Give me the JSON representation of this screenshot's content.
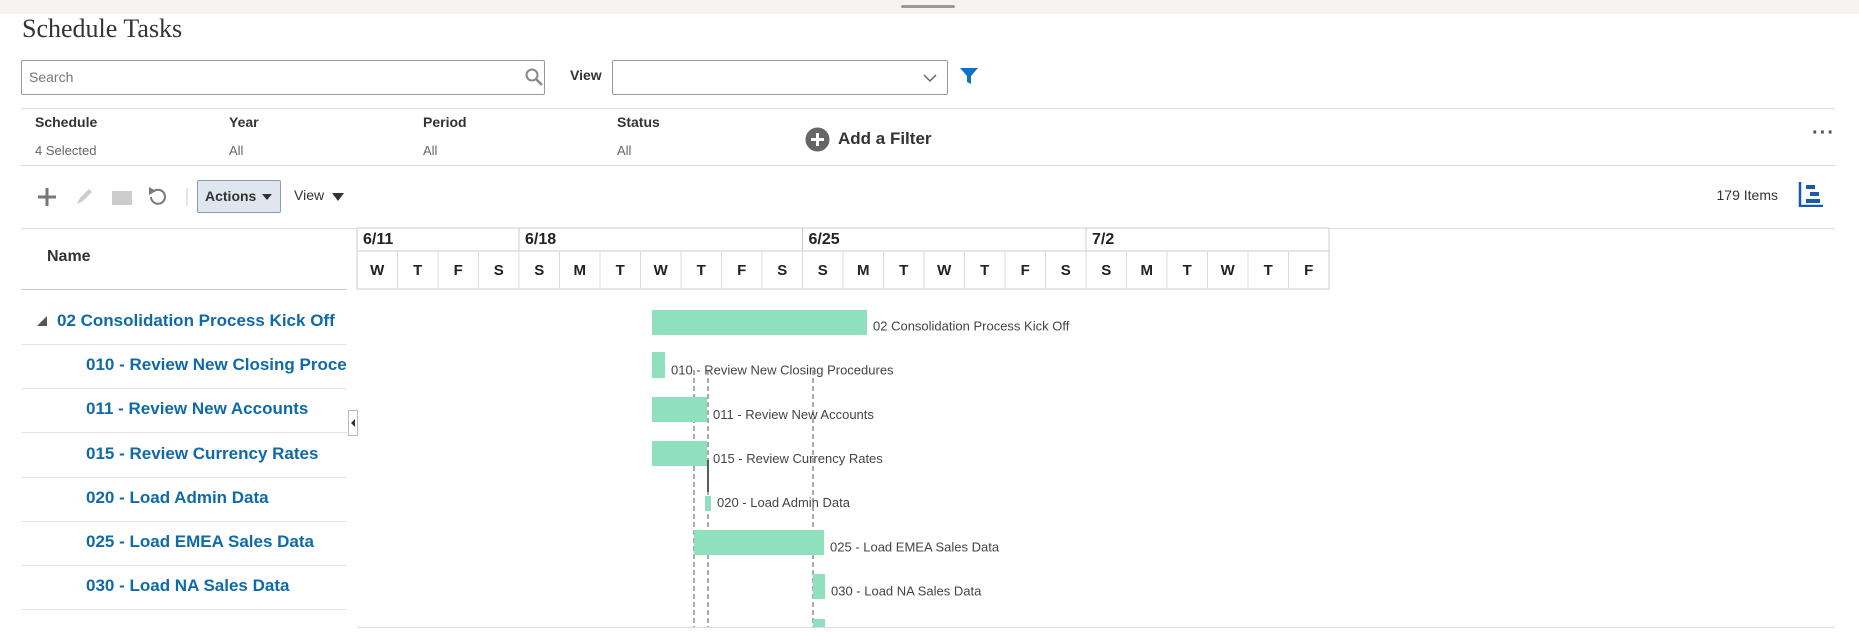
{
  "header": {
    "title": "Schedule Tasks"
  },
  "search": {
    "placeholder": "Search",
    "view_label": "View"
  },
  "filters": [
    {
      "label": "Schedule",
      "value": "4 Selected"
    },
    {
      "label": "Year",
      "value": "All"
    },
    {
      "label": "Period",
      "value": "All"
    },
    {
      "label": "Status",
      "value": "All"
    }
  ],
  "add_filter": "Add a Filter",
  "toolbar": {
    "actions": "Actions",
    "view": "View",
    "items": "179 Items"
  },
  "table": {
    "name_header": "Name"
  },
  "timeline": {
    "weeks": [
      {
        "label": "6/11",
        "start": 0
      },
      {
        "label": "6/18",
        "start": 4
      },
      {
        "label": "6/25",
        "start": 11
      },
      {
        "label": "7/2",
        "start": 18
      }
    ],
    "days": [
      "W",
      "T",
      "F",
      "S",
      "S",
      "M",
      "T",
      "W",
      "T",
      "F",
      "S",
      "S",
      "M",
      "T",
      "W",
      "T",
      "F",
      "S",
      "S",
      "M",
      "T",
      "W",
      "T",
      "F"
    ]
  },
  "tasks": [
    "02 Consolidation Process Kick Off",
    "010 - Review New Closing Procedures",
    "011 - Review New Accounts",
    "015 - Review Currency Rates",
    "020 - Load Admin Data",
    "025 - Load EMEA Sales Data",
    "030 - Load NA Sales Data"
  ]
}
